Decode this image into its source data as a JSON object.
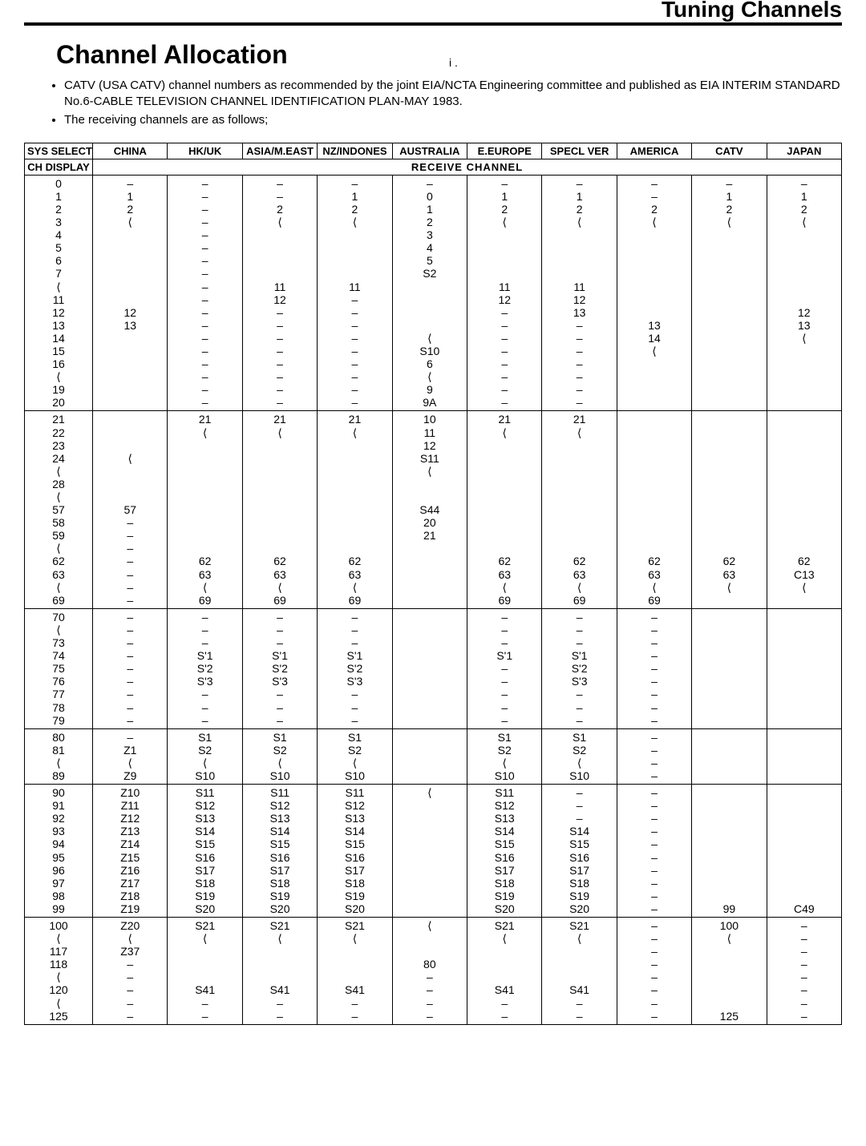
{
  "header": {
    "corner": "Tuning Channels",
    "title": "Channel Allocation",
    "tick": "i ."
  },
  "notes": [
    "CATV (USA CATV) channel numbers as recommended by the joint EIA/NCTA Engineering committee and published as EIA INTERIM STANDARD No.6-CABLE TELEVISION CHANNEL IDENTIFICATION PLAN-MAY 1983.",
    "The receiving channels are as follows;"
  ],
  "table": {
    "sys_select": "SYS SELECT",
    "ch_display": "CH DISPLAY",
    "receive_header": "RECEIVE CHANNEL",
    "regions": [
      "CHINA",
      "HK/UK",
      "ASIA/M.EAST",
      "NZ/INDONES",
      "AUSTRALIA",
      "E.EUROPE",
      "SPECL VER",
      "AMERICA",
      "CATV",
      "JAPAN"
    ],
    "rows": [
      {
        "ch": "0\n1\n2\n3\n4\n5\n6\n7\n⟨\n11\n12\n13\n14\n15\n16\n⟨\n19\n20",
        "vals": [
          "–\n1\n2\n⟨\n\n\n\n\n\n\n12\n13",
          "–\n–\n–\n–\n–\n–\n–\n–\n–\n–\n–\n–\n–\n–\n–\n–\n–\n–",
          "–\n–\n2\n⟨\n\n\n\n\n11\n12\n–\n–\n–\n–\n–\n–\n–\n–",
          "–\n1\n2\n⟨\n\n\n\n\n11\n–\n–\n–\n–\n–\n–\n–\n–\n–",
          "–\n0\n1\n2\n3\n4\n5\nS2\n\n\n\n\n⟨\nS10\n6\n⟨\n9\n9A",
          "–\n1\n2\n⟨\n\n\n\n\n11\n12\n–\n–\n–\n–\n–\n–\n–\n–",
          "–\n1\n2\n⟨\n\n\n\n\n11\n12\n13\n–\n–\n–\n–\n–\n–\n–",
          "–\n–\n2\n⟨\n\n\n\n\n\n\n\n13\n14\n⟨\n\n\n\n",
          "–\n1\n2\n⟨\n\n\n\n\n\n\n\n\n\n\n\n\n\n",
          "–\n1\n2\n⟨\n\n\n\n\n\n\n12\n13\n⟨\n\n\n\n\n"
        ]
      },
      {
        "ch": "21\n22\n23\n24\n⟨\n28\n⟨\n57\n58\n59\n⟨\n62\n63\n⟨\n69",
        "vals": [
          "\n\n\n⟨\n\n\n\n57\n–\n–\n–\n–\n–\n–\n–",
          "21\n⟨\n\n\n\n\n\n\n\n\n\n62\n63\n⟨\n69",
          "21\n⟨\n\n\n\n\n\n\n\n\n\n62\n63\n⟨\n69",
          "21\n⟨\n\n\n\n\n\n\n\n\n\n62\n63\n⟨\n69",
          "10\n11\n12\nS11\n⟨\n\n\nS44\n20\n21\n\n\n\n\n",
          "21\n⟨\n\n\n\n\n\n\n\n\n\n62\n63\n⟨\n69",
          "21\n⟨\n\n\n\n\n\n\n\n\n\n62\n63\n⟨\n69",
          "\n\n\n\n\n\n\n\n\n\n\n62\n63\n⟨\n69",
          "\n\n\n\n\n\n\n\n\n\n\n62\n63\n⟨\n",
          "\n\n\n\n\n\n\n\n\n\n\n62\nC13\n⟨\n"
        ]
      },
      {
        "ch": "70\n⟨\n73\n74\n75\n76\n77\n78\n79",
        "vals": [
          "–\n–\n–\n–\n–\n–\n–\n–\n–",
          "–\n–\n–\nS'1\nS'2\nS'3\n–\n–\n–",
          "–\n–\n–\nS'1\nS'2\nS'3\n–\n–\n–",
          "–\n–\n–\nS'1\nS'2\nS'3\n–\n–\n–",
          "",
          "–\n–\n–\nS'1\n–\n–\n–\n–\n–",
          "–\n–\n–\nS'1\nS'2\nS'3\n–\n–\n–",
          "–\n–\n–\n–\n–\n–\n–\n–\n–",
          "",
          ""
        ]
      },
      {
        "ch": "80\n81\n⟨\n89",
        "vals": [
          "–\nZ1\n⟨\nZ9",
          "S1\nS2\n⟨\nS10",
          "S1\nS2\n⟨\nS10",
          "S1\nS2\n⟨\nS10",
          "",
          "S1\nS2\n⟨\nS10",
          "S1\nS2\n⟨\nS10",
          "–\n–\n–\n–",
          "",
          ""
        ]
      },
      {
        "ch": "90\n91\n92\n93\n94\n95\n96\n97\n98\n99",
        "vals": [
          "Z10\nZ11\nZ12\nZ13\nZ14\nZ15\nZ16\nZ17\nZ18\nZ19",
          "S11\nS12\nS13\nS14\nS15\nS16\nS17\nS18\nS19\nS20",
          "S11\nS12\nS13\nS14\nS15\nS16\nS17\nS18\nS19\nS20",
          "S11\nS12\nS13\nS14\nS15\nS16\nS17\nS18\nS19\nS20",
          "⟨\n\n\n\n\n\n\n\n\n",
          "S11\nS12\nS13\nS14\nS15\nS16\nS17\nS18\nS19\nS20",
          "–\n–\n–\nS14\nS15\nS16\nS17\nS18\nS19\nS20",
          "–\n–\n–\n–\n–\n–\n–\n–\n–\n–",
          "\n\n\n\n\n\n\n\n\n99",
          "\n\n\n\n\n\n\n\n\nC49"
        ]
      },
      {
        "ch": "100\n⟨\n117\n118\n⟨\n120\n⟨\n125",
        "vals": [
          "Z20\n⟨\nZ37\n–\n–\n–\n–\n–",
          "S21\n⟨\n\n\n\nS41\n–\n–",
          "S21\n⟨\n\n\n\nS41\n–\n–",
          "S21\n⟨\n\n\n\nS41\n–\n–",
          "⟨\n\n\n80\n–\n–\n–\n–",
          "S21\n⟨\n\n\n\nS41\n–\n–",
          "S21\n⟨\n\n\n\nS41\n–\n–",
          "–\n–\n–\n–\n–\n–\n–\n–",
          "100\n⟨\n\n\n\n\n\n125",
          "–\n–\n–\n–\n–\n–\n–\n–"
        ]
      }
    ]
  },
  "style": {
    "border_color": "#000000",
    "background": "#ffffff",
    "font_body": 14,
    "font_title": 32,
    "font_corner": 28
  }
}
